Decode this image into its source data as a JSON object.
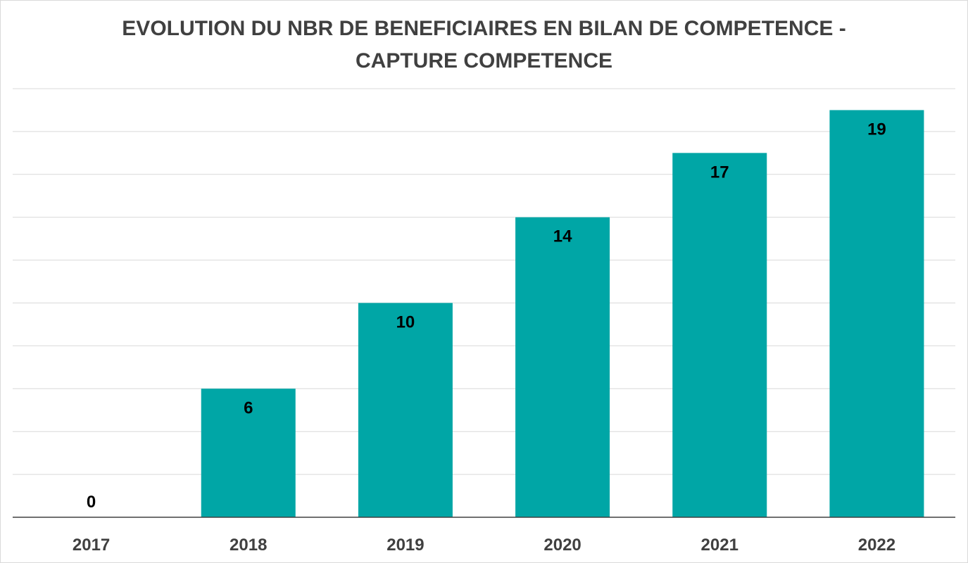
{
  "chart_data": {
    "type": "bar",
    "title_lines": [
      "EVOLUTION DU NBR DE BENEFICIAIRES EN BILAN DE COMPETENCE -",
      "CAPTURE COMPETENCE"
    ],
    "categories": [
      "2017",
      "2018",
      "2019",
      "2020",
      "2021",
      "2022"
    ],
    "values": [
      0,
      6,
      10,
      14,
      17,
      19
    ],
    "data_labels": [
      "0",
      "6",
      "10",
      "14",
      "17",
      "19"
    ],
    "xlabel": "",
    "ylabel": "",
    "ylim": [
      0,
      20
    ],
    "y_axis_labels_shown": false,
    "grid": true,
    "legend": "none",
    "bar_color": "#00a6a6"
  }
}
